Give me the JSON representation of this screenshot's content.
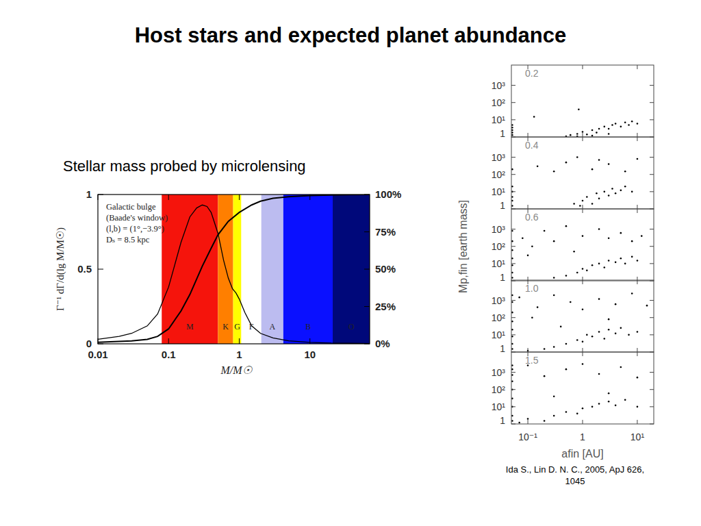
{
  "title": "Host stars and expected planet abundance",
  "citation": [
    "Ida S., Lin D. N. C., 2005, ApJ 626,",
    "1045"
  ],
  "chart_data": [
    {
      "type": "line",
      "title": "Stellar mass probed by microlensing",
      "xlabel": "M/M☉",
      "ylabel": "Γ⁻¹ dΓ/d(lg M/M☉)",
      "log": "x",
      "xlim": [
        0.01,
        70
      ],
      "ylim": [
        0,
        1
      ],
      "y2lim": [
        0,
        100
      ],
      "xticks": [
        0.01,
        0.1,
        1,
        10
      ],
      "yticks": [
        0,
        0.5,
        1
      ],
      "y2ticks": [
        {
          "value": 0,
          "label": "0%"
        },
        {
          "value": 25,
          "label": "25%"
        },
        {
          "value": 50,
          "label": "50%"
        },
        {
          "value": 75,
          "label": "75%"
        },
        {
          "value": 100,
          "label": "100%"
        }
      ],
      "annotations": [
        "Galactic bulge",
        "(Baade's window)",
        "(l,b) = (1°,−3.9°)",
        "Dₛ = 8.5 kpc"
      ],
      "bands": [
        {
          "label": "M",
          "from": 0.08,
          "to": 0.5,
          "color": "#f5140c"
        },
        {
          "label": "K",
          "from": 0.5,
          "to": 0.82,
          "color": "#ff7f00"
        },
        {
          "label": "G",
          "from": 0.82,
          "to": 1.07,
          "color": "#ffff00"
        },
        {
          "label": "F",
          "from": 1.07,
          "to": 2.05,
          "color": "#ffffff"
        },
        {
          "label": "A",
          "from": 2.05,
          "to": 4.2,
          "color": "#bcbcf0"
        },
        {
          "label": "B",
          "from": 4.2,
          "to": 21,
          "color": "#0a10ff"
        },
        {
          "label": "O",
          "from": 21,
          "to": 70,
          "color": "#00087a"
        }
      ],
      "series": [
        {
          "color": "#000000",
          "axis": "y",
          "x": [
            0.01,
            0.02,
            0.03,
            0.05,
            0.07,
            0.1,
            0.15,
            0.2,
            0.25,
            0.3,
            0.35,
            0.4,
            0.5,
            0.6,
            0.7,
            0.8,
            0.9,
            1,
            1.2,
            1.5,
            2,
            3,
            5,
            10,
            20,
            70
          ],
          "values": [
            0.03,
            0.05,
            0.07,
            0.12,
            0.2,
            0.38,
            0.68,
            0.85,
            0.91,
            0.93,
            0.92,
            0.88,
            0.74,
            0.56,
            0.44,
            0.37,
            0.34,
            0.3,
            0.21,
            0.12,
            0.07,
            0.04,
            0.02,
            0.01,
            0.005,
            0.002
          ]
        },
        {
          "color": "#000000",
          "axis": "y2",
          "x": [
            0.01,
            0.03,
            0.05,
            0.07,
            0.1,
            0.15,
            0.2,
            0.3,
            0.4,
            0.5,
            0.7,
            1,
            1.5,
            2,
            3,
            5,
            10,
            20,
            70
          ],
          "values": [
            1,
            2,
            3,
            5,
            10,
            22,
            33,
            52,
            64,
            73,
            82,
            88,
            93,
            95.5,
            97.5,
            98.5,
            99.3,
            99.7,
            100
          ]
        }
      ]
    },
    {
      "type": "scatter",
      "title": "0.2",
      "log": true,
      "tick_labels": "y",
      "color": "#000000",
      "xlim": [
        0.05,
        20
      ],
      "ylim": [
        1,
        15000
      ],
      "xticks": [
        {
          "value": 0.1,
          "label": "10⁻¹"
        },
        1,
        {
          "value": 10,
          "label": "10¹"
        }
      ],
      "yticks": [
        1,
        {
          "value": 10,
          "label": "10¹"
        },
        {
          "value": 100,
          "label": "10²"
        },
        {
          "value": 1000,
          "label": "10³"
        }
      ],
      "x": [
        0.052,
        0.052,
        0.052,
        0.052,
        0.052,
        0.5,
        0.6,
        0.8,
        1,
        1.2,
        1.5,
        1.8,
        2,
        2.5,
        3,
        3.5,
        4,
        5,
        6,
        7,
        8,
        10,
        0.8,
        1.5,
        3,
        0.13,
        0.85
      ],
      "values": [
        1.3,
        1.8,
        2.5,
        3.5,
        5,
        1.1,
        1.3,
        1.5,
        2,
        1.4,
        2.5,
        1.8,
        3,
        4,
        3,
        5,
        6,
        4,
        7,
        5,
        8,
        6,
        1.1,
        1.2,
        1.5,
        15,
        40
      ]
    },
    {
      "type": "scatter",
      "title": "0.4",
      "log": true,
      "tick_labels": "y",
      "color": "#000000",
      "xlim": [
        0.05,
        20
      ],
      "ylim": [
        1,
        15000
      ],
      "xticks": [
        {
          "value": 0.1,
          "label": "10⁻¹"
        },
        1,
        {
          "value": 10,
          "label": "10¹"
        }
      ],
      "yticks": [
        1,
        {
          "value": 10,
          "label": "10¹"
        },
        {
          "value": 100,
          "label": "10²"
        },
        {
          "value": 1000,
          "label": "10³"
        }
      ],
      "x": [
        0.052,
        0.052,
        0.052,
        0.052,
        0.052,
        0.052,
        0.7,
        0.9,
        1,
        1.2,
        1.5,
        1.8,
        2,
        2.5,
        3,
        3.5,
        4,
        5,
        6,
        8,
        0.15,
        0.3,
        0.5,
        1.5,
        3,
        6,
        10,
        0.8,
        2
      ],
      "values": [
        1.5,
        3,
        5,
        10,
        20,
        200,
        2,
        1.5,
        3,
        5,
        2,
        8,
        4,
        10,
        6,
        15,
        8,
        12,
        20,
        10,
        300,
        150,
        500,
        200,
        400,
        150,
        800,
        1000,
        700
      ]
    },
    {
      "type": "scatter",
      "title": "0.6",
      "log": true,
      "tick_labels": "y",
      "color": "#000000",
      "ylabel": "Mp,fin [earth mass]",
      "xlim": [
        0.05,
        20
      ],
      "ylim": [
        1,
        15000
      ],
      "xticks": [
        {
          "value": 0.1,
          "label": "10⁻¹"
        },
        1,
        {
          "value": 10,
          "label": "10¹"
        }
      ],
      "yticks": [
        1,
        {
          "value": 10,
          "label": "10¹"
        },
        {
          "value": 100,
          "label": "10²"
        },
        {
          "value": 1000,
          "label": "10³"
        }
      ],
      "x": [
        0.052,
        0.052,
        0.052,
        0.052,
        0.052,
        0.052,
        0.052,
        0.3,
        0.5,
        0.8,
        1,
        1.2,
        1.5,
        2,
        2.5,
        3,
        4,
        5,
        6,
        8,
        10,
        0.08,
        0.12,
        0.2,
        0.3,
        0.5,
        1,
        2,
        3,
        5,
        8,
        12,
        0.1,
        0.7
      ],
      "values": [
        1.5,
        3,
        8,
        20,
        60,
        200,
        800,
        1.5,
        2,
        3,
        5,
        4,
        8,
        10,
        6,
        15,
        12,
        20,
        10,
        25,
        15,
        300,
        100,
        800,
        200,
        1500,
        400,
        1000,
        300,
        600,
        200,
        400,
        30,
        50
      ]
    },
    {
      "type": "scatter",
      "title": "1.0",
      "log": true,
      "tick_labels": "y",
      "color": "#000000",
      "xlim": [
        0.05,
        20
      ],
      "ylim": [
        1,
        15000
      ],
      "xticks": [
        {
          "value": 0.1,
          "label": "10⁻¹"
        },
        1,
        {
          "value": 10,
          "label": "10¹"
        }
      ],
      "yticks": [
        1,
        {
          "value": 10,
          "label": "10¹"
        },
        {
          "value": 100,
          "label": "10²"
        },
        {
          "value": 1000,
          "label": "10³"
        }
      ],
      "x": [
        0.052,
        0.052,
        0.052,
        0.052,
        0.052,
        0.052,
        0.052,
        0.052,
        0.1,
        0.2,
        0.3,
        0.5,
        0.8,
        1,
        1.2,
        1.5,
        2,
        2.5,
        3,
        4,
        5,
        7,
        10,
        0.07,
        0.15,
        0.3,
        0.6,
        1,
        2,
        4,
        8,
        15,
        0.12,
        0.4,
        3
      ],
      "values": [
        1.5,
        3,
        8,
        20,
        60,
        200,
        800,
        2000,
        1.2,
        1.5,
        2,
        3,
        5,
        4,
        10,
        8,
        15,
        6,
        20,
        12,
        25,
        10,
        15,
        1500,
        400,
        2000,
        800,
        300,
        1200,
        600,
        2500,
        500,
        100,
        30,
        80
      ]
    },
    {
      "type": "scatter",
      "title": "1.5",
      "log": true,
      "color": "#000000",
      "xlabel": "afin [AU]",
      "xlim": [
        0.05,
        20
      ],
      "ylim": [
        1,
        15000
      ],
      "xticks": [
        {
          "value": 0.1,
          "label": "10⁻¹"
        },
        1,
        {
          "value": 10,
          "label": "10¹"
        }
      ],
      "yticks": [
        1,
        {
          "value": 10,
          "label": "10¹"
        },
        {
          "value": 100,
          "label": "10²"
        },
        {
          "value": 1000,
          "label": "10³"
        }
      ],
      "x": [
        0.052,
        0.052,
        0.052,
        0.052,
        0.052,
        0.052,
        0.052,
        0.052,
        0.052,
        0.07,
        0.1,
        0.2,
        0.3,
        0.5,
        0.8,
        1,
        1.5,
        2,
        3,
        4,
        6,
        10,
        0.1,
        0.2,
        0.5,
        1,
        2,
        5,
        10,
        0.3,
        3
      ],
      "values": [
        1.5,
        3,
        10,
        30,
        100,
        300,
        700,
        1500,
        2500,
        1.2,
        2,
        1.5,
        3,
        5,
        4,
        8,
        10,
        15,
        20,
        12,
        25,
        10,
        2500,
        600,
        1500,
        3000,
        800,
        2000,
        500,
        40,
        60
      ]
    }
  ]
}
